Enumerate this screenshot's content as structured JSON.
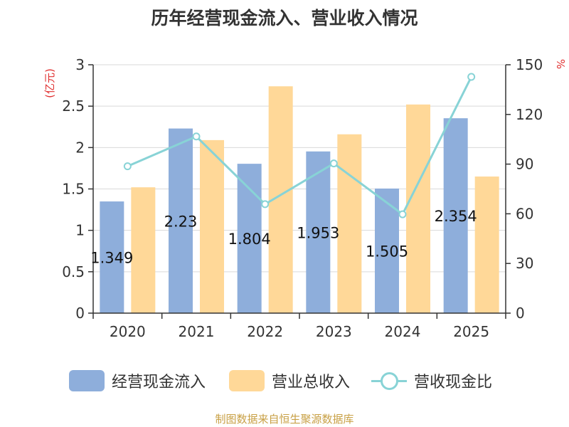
{
  "title": "历年经营现金流入、营业收入情况",
  "footer": "制图数据来自恒生聚源数据库",
  "chart_data": {
    "type": "bar",
    "title": "历年经营现金流入、营业收入情况",
    "categories": [
      "2020",
      "2021",
      "2022",
      "2023",
      "2024",
      "2025"
    ],
    "y_left": {
      "label": "(亿元)",
      "ylim": [
        0,
        3
      ],
      "ticks": [
        "0",
        "0.5",
        "1",
        "1.5",
        "2",
        "2.5",
        "3"
      ]
    },
    "y_right": {
      "label": "%",
      "ylim": [
        0,
        150
      ],
      "ticks": [
        "0",
        "30",
        "60",
        "90",
        "120",
        "150"
      ]
    },
    "grid": true,
    "legend_position": "bottom",
    "series": [
      {
        "name": "经营现金流入",
        "type": "bar",
        "axis": "left",
        "color": "#8eaedb",
        "values": [
          1.349,
          2.23,
          1.804,
          1.953,
          1.505,
          2.354
        ],
        "labels": [
          "1.349",
          "2.23",
          "1.804",
          "1.953",
          "1.505",
          "2.354"
        ]
      },
      {
        "name": "营业总收入",
        "type": "bar",
        "axis": "left",
        "color": "#ffd898",
        "values": [
          1.52,
          2.09,
          2.74,
          2.16,
          2.52,
          1.65
        ]
      },
      {
        "name": "营收现金比",
        "type": "line",
        "axis": "right",
        "color": "#88d3d6",
        "values": [
          88.7,
          106.7,
          65.8,
          90.4,
          59.7,
          142.7
        ]
      }
    ]
  }
}
